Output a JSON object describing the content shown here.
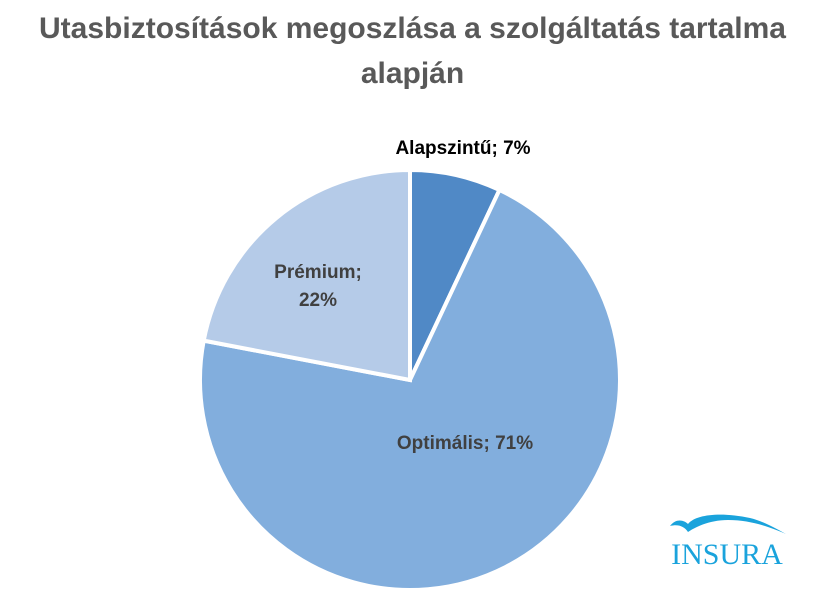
{
  "chart_data": {
    "type": "pie",
    "title_lines": [
      "Utasbiztosítások megoszlása a szolgáltatás tartalma",
      "alapján"
    ],
    "slices": [
      {
        "label": "Alapszintű",
        "value": 7,
        "data_label": "Alapszintű; 7%",
        "color": "#5089c6"
      },
      {
        "label": "Optimális",
        "value": 71,
        "data_label": "Optimális; 71%",
        "color": "#82aedd"
      },
      {
        "label": "Prémium",
        "value": 22,
        "data_label_lines": [
          "Prémium;",
          "22%"
        ],
        "color": "#b5cbe8"
      }
    ],
    "units": "%"
  },
  "logo": {
    "text": "INSURA",
    "color": "#1aa3dc"
  }
}
